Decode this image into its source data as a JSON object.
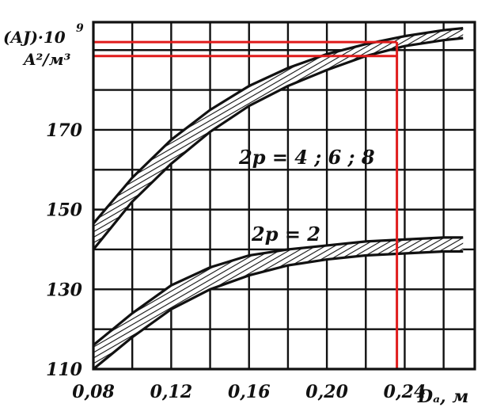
{
  "chart_data": {
    "type": "area",
    "ylabel_line1": "(AJ)·10",
    "ylabel_exp": "9",
    "ylabel_line2": "A²/м³",
    "xlabel": "Dₐ, м",
    "xlim": [
      0.08,
      0.276
    ],
    "ylim": [
      110,
      197
    ],
    "x_ticks": [
      0.08,
      0.12,
      0.16,
      0.2,
      0.24
    ],
    "x_tick_labels": [
      "0,08",
      "0,12",
      "0,16",
      "0,20",
      "0,24"
    ],
    "y_ticks": [
      110,
      130,
      150,
      170
    ],
    "y_tick_labels": [
      "110",
      "130",
      "150",
      "170"
    ],
    "grid": true,
    "series": [
      {
        "name": "2p = 4 ; 6 ; 8",
        "x": [
          0.08,
          0.1,
          0.12,
          0.14,
          0.16,
          0.18,
          0.2,
          0.22,
          0.24,
          0.26,
          0.27
        ],
        "upper": [
          146.5,
          158,
          167.5,
          175,
          181,
          185.5,
          189,
          191.5,
          193.5,
          195,
          195.5
        ],
        "lower": [
          140,
          152,
          161.5,
          169.5,
          176,
          181,
          185,
          188.5,
          191,
          192.5,
          193
        ]
      },
      {
        "name": "2p = 2",
        "x": [
          0.08,
          0.1,
          0.12,
          0.14,
          0.16,
          0.18,
          0.2,
          0.22,
          0.24,
          0.26,
          0.27
        ],
        "upper": [
          116,
          124,
          131,
          135.5,
          138.5,
          140,
          141,
          142,
          142.5,
          143,
          143
        ],
        "lower": [
          110,
          118,
          125,
          130,
          133.5,
          136,
          137.5,
          138.5,
          139,
          139.5,
          139.5
        ]
      }
    ],
    "reference_lines": {
      "x": 0.236,
      "y_top": 192,
      "y_bottom": 188.5,
      "color": "#e01b1b"
    }
  }
}
